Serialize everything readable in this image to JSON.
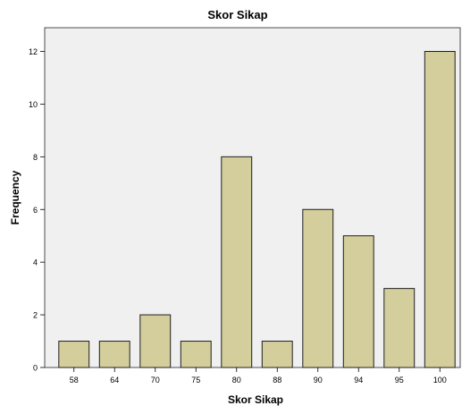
{
  "chart_data": {
    "type": "bar",
    "title": "Skor Sikap",
    "xlabel": "Skor Sikap",
    "ylabel": "Frequency",
    "categories": [
      "58",
      "64",
      "70",
      "75",
      "80",
      "88",
      "90",
      "94",
      "95",
      "100"
    ],
    "values": [
      1,
      1,
      2,
      1,
      8,
      1,
      6,
      5,
      3,
      12
    ],
    "ylim": [
      0,
      12.9
    ],
    "yticks": [
      0,
      2,
      4,
      6,
      8,
      10,
      12
    ],
    "grid": false,
    "legend": "none",
    "colors": {
      "bar_fill": "#d3ce9b",
      "bar_stroke": "#1f1f1f",
      "plot_bg": "#f0f0f0",
      "axis": "#000000"
    }
  }
}
